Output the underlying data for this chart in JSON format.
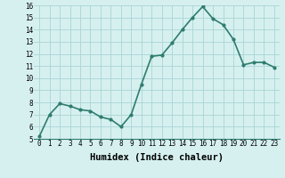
{
  "x": [
    0,
    1,
    2,
    3,
    4,
    5,
    6,
    7,
    8,
    9,
    10,
    11,
    12,
    13,
    14,
    15,
    16,
    17,
    18,
    19,
    20,
    21,
    22,
    23
  ],
  "y": [
    5.2,
    7.0,
    7.9,
    7.7,
    7.4,
    7.3,
    6.8,
    6.6,
    6.0,
    7.0,
    9.5,
    11.8,
    11.9,
    12.9,
    14.0,
    15.0,
    15.9,
    14.9,
    14.4,
    13.2,
    11.1,
    11.3,
    11.3,
    10.9
  ],
  "line_color": "#2e7d6e",
  "marker": "o",
  "marker_size": 2.0,
  "bg_color": "#d6f0f0",
  "grid_color": "#aad4d4",
  "xlabel": "Humidex (Indice chaleur)",
  "ylim": [
    5,
    16
  ],
  "xlim_min": -0.5,
  "xlim_max": 23.5,
  "yticks": [
    5,
    6,
    7,
    8,
    9,
    10,
    11,
    12,
    13,
    14,
    15,
    16
  ],
  "xticks": [
    0,
    1,
    2,
    3,
    4,
    5,
    6,
    7,
    8,
    9,
    10,
    11,
    12,
    13,
    14,
    15,
    16,
    17,
    18,
    19,
    20,
    21,
    22,
    23
  ],
  "tick_label_fontsize": 5.5,
  "xlabel_fontsize": 7.5,
  "xlabel_fontweight": "bold",
  "line_width": 1.2
}
